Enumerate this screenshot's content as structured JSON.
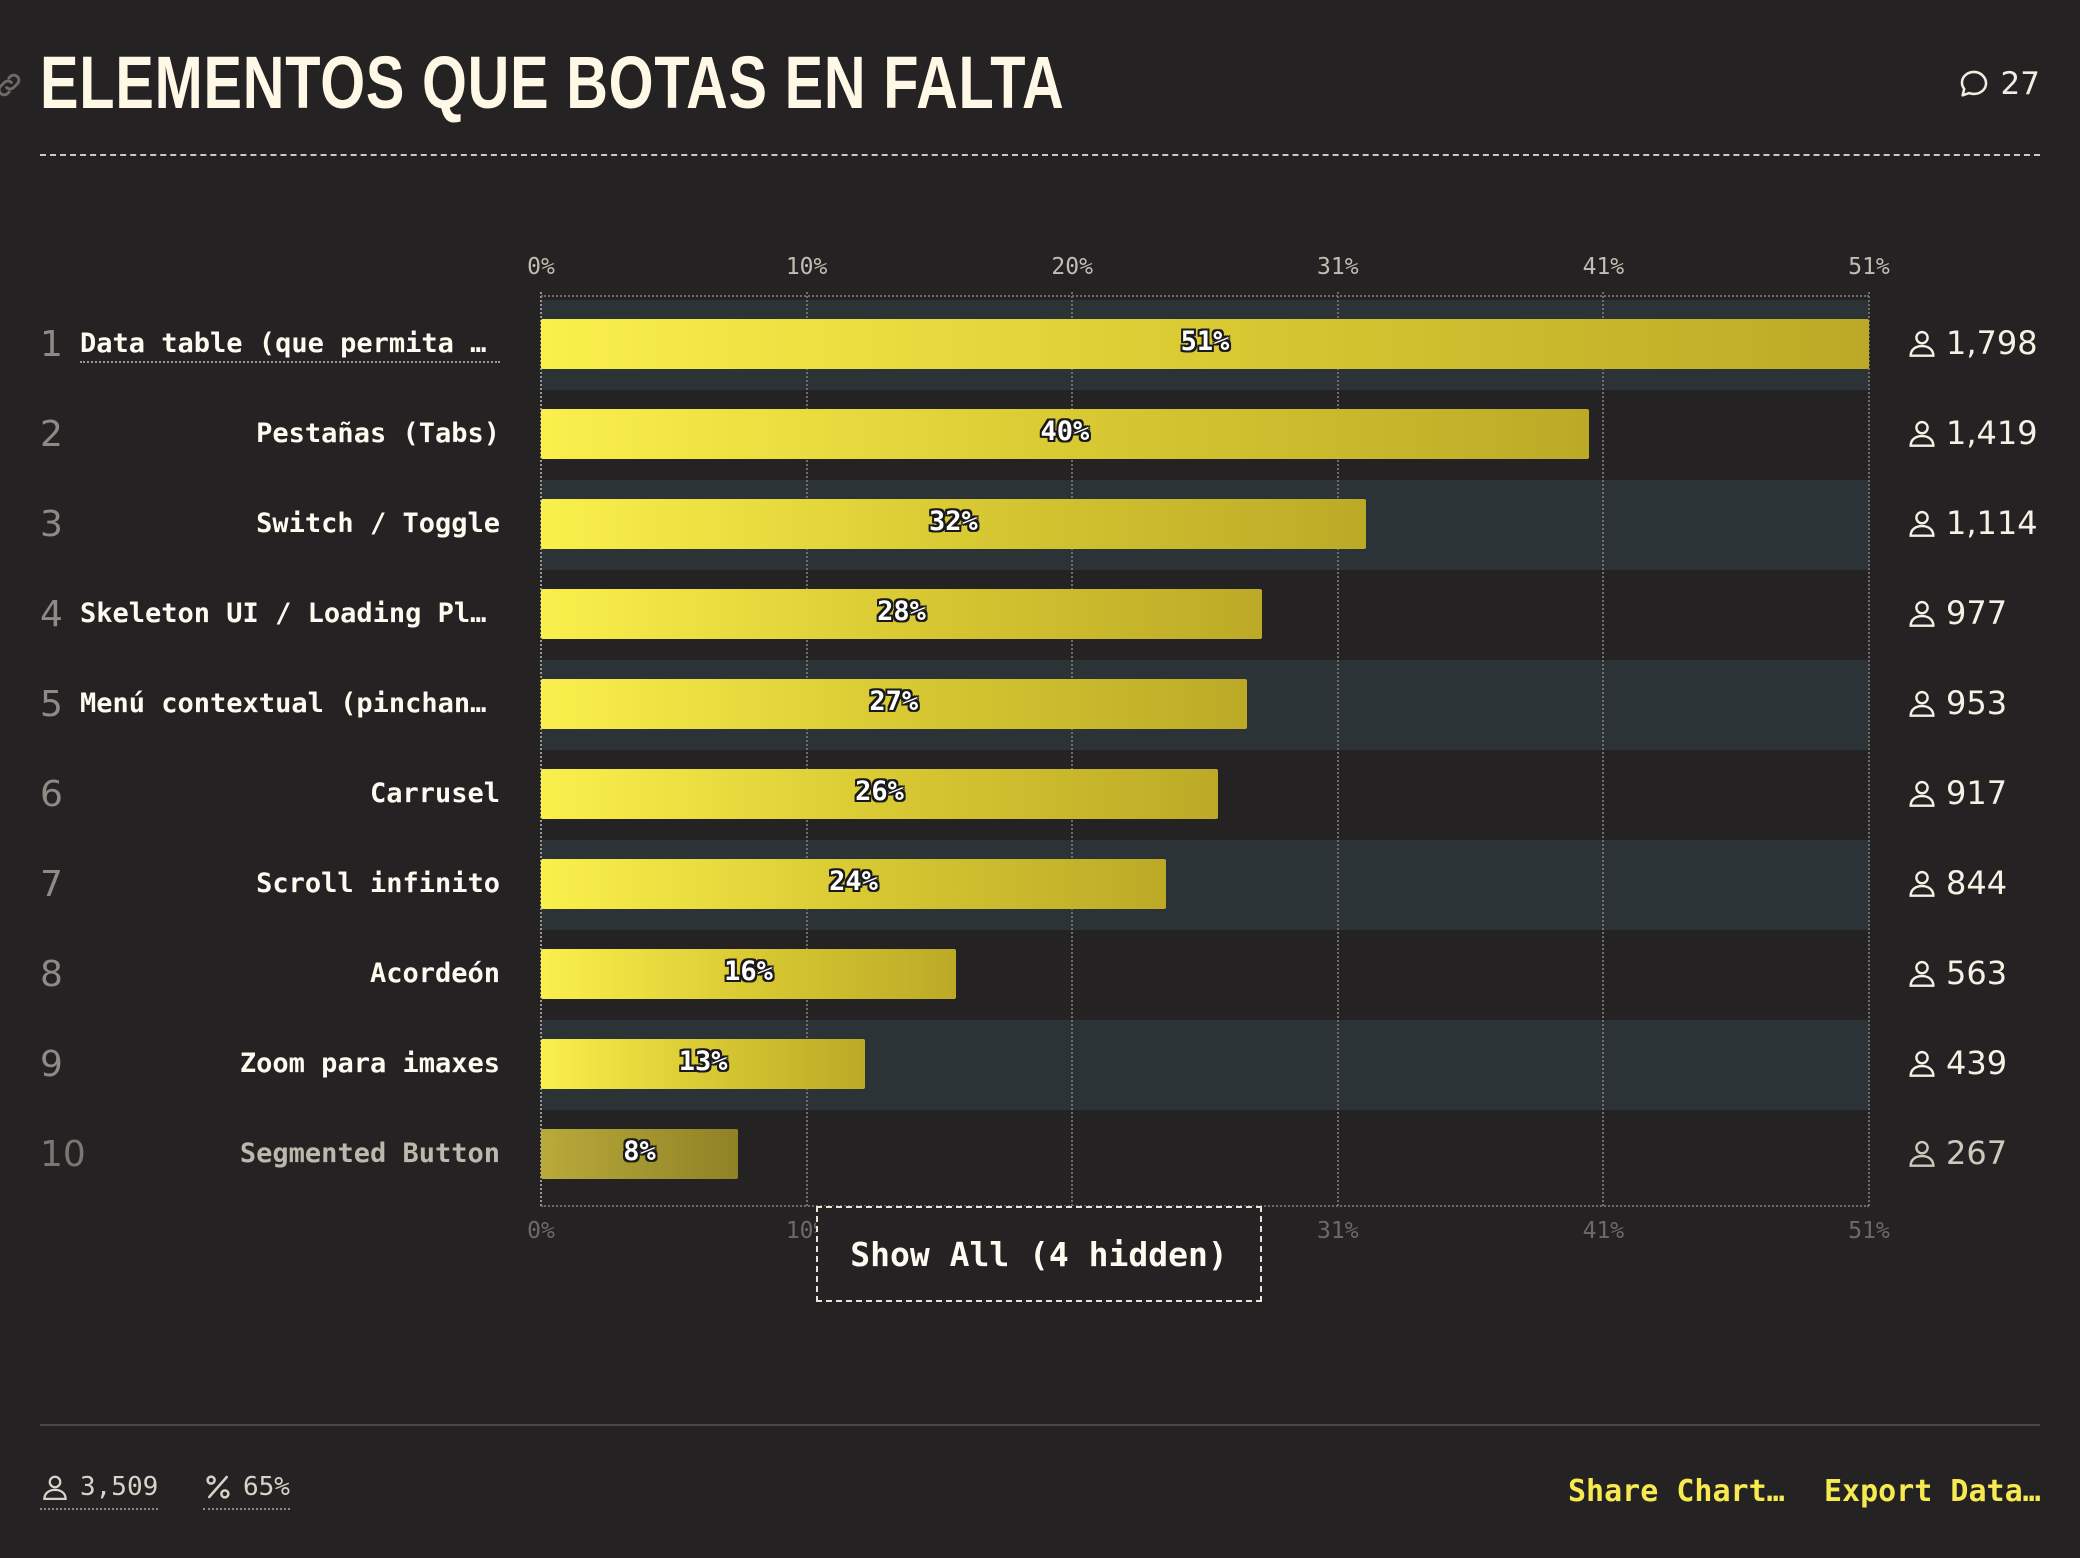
{
  "header": {
    "title": "ELEMENTOS QUE BOTAS EN FALTA",
    "comments_count": "27"
  },
  "chart_data": {
    "type": "bar",
    "orientation": "horizontal",
    "title": "ELEMENTOS QUE BOTAS EN FALTA",
    "xlabel": "",
    "ylabel": "",
    "x_ticks": [
      "0%",
      "10%",
      "20%",
      "31%",
      "41%",
      "51%"
    ],
    "xlim": [
      0,
      51.2
    ],
    "grid": true,
    "categories": [
      "Data table (que permita o…",
      "Pestañas (Tabs)",
      "Switch / Toggle",
      "Skeleton UI / Loading Pla…",
      "Menú contextual (pinchand…",
      "Carrusel",
      "Scroll infinito",
      "Acordeón",
      "Zoom para imaxes",
      "Segmented Button"
    ],
    "values": [
      51.2,
      40.4,
      31.8,
      27.8,
      27.2,
      26.1,
      24.1,
      16.0,
      12.5,
      7.6
    ],
    "value_labels": [
      "51%",
      "40%",
      "32%",
      "28%",
      "27%",
      "26%",
      "24%",
      "16%",
      "13%",
      "8%"
    ],
    "counts": [
      "1,798",
      "1,419",
      "1,114",
      "977",
      "953",
      "917",
      "844",
      "563",
      "439",
      "267"
    ],
    "ranks": [
      "1",
      "2",
      "3",
      "4",
      "5",
      "6",
      "7",
      "8",
      "9",
      "10"
    ]
  },
  "show_all_label": "Show All (4 hidden)",
  "footer": {
    "respondents": "3,509",
    "percentage": "65%",
    "share_label": "Share Chart…",
    "export_label": "Export Data…"
  },
  "colors": {
    "background": "#252223",
    "bar_start": "#faf04c",
    "bar_end": "#bcaa27",
    "accent": "#f7ea4f",
    "stripe": "#2c3336"
  }
}
